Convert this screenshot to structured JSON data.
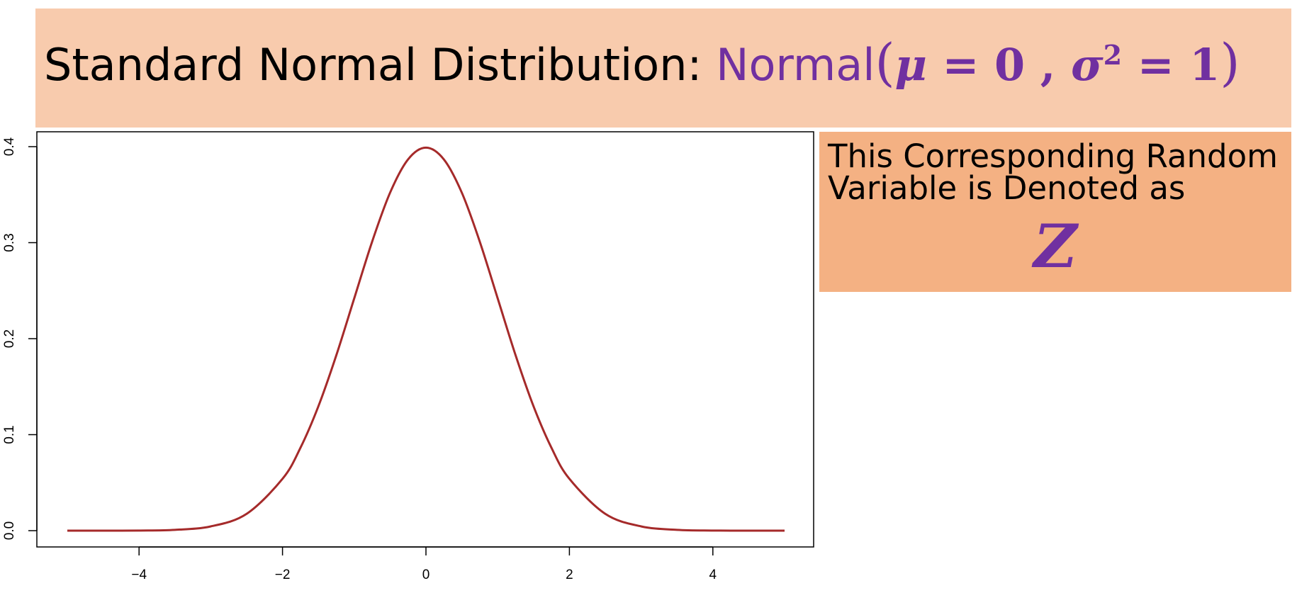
{
  "title": {
    "part1": "Standard Normal",
    "part2": " Distribution: ",
    "part3": "Normal",
    "formula": {
      "mu": "μ",
      "eq1": " = 0 , ",
      "sigma": "σ",
      "exp": "2",
      "eq2": " = 1"
    }
  },
  "info_box": {
    "text": "This Corresponding Random\nVariable  is Denoted as",
    "symbol": "Z"
  },
  "colors": {
    "title_band": "#f8cbad",
    "info_box": "#f4b183",
    "accent_purple": "#7030a0",
    "curve": "#a52a2a"
  },
  "chart_data": {
    "type": "line",
    "title": "",
    "xlabel": "",
    "ylabel": "",
    "xlim": [
      -5,
      5
    ],
    "ylim": [
      0,
      0.4
    ],
    "x_ticks": [
      -4,
      -2,
      0,
      2,
      4
    ],
    "x_tick_labels": [
      "−4",
      "−2",
      "0",
      "2",
      "4"
    ],
    "y_ticks": [
      0.0,
      0.1,
      0.2,
      0.3,
      0.4
    ],
    "y_tick_labels": [
      "0.0",
      "0.1",
      "0.2",
      "0.3",
      "0.4"
    ],
    "grid": false,
    "legend": "none",
    "series": [
      {
        "x": [
          -5,
          -4.5,
          -4,
          -3.5,
          -3,
          -2.5,
          -2,
          -1.75,
          -1.5,
          -1.25,
          -1,
          -0.75,
          -0.5,
          -0.25,
          0,
          0.25,
          0.5,
          0.75,
          1,
          1.25,
          1.5,
          1.75,
          2,
          2.5,
          3,
          3.5,
          4,
          4.5,
          5
        ],
        "y": [
          1.5e-06,
          1.6e-05,
          0.000134,
          0.000873,
          0.004432,
          0.017528,
          0.053991,
          0.086277,
          0.129518,
          0.182649,
          0.241971,
          0.301137,
          0.352065,
          0.386668,
          0.398942,
          0.386668,
          0.352065,
          0.301137,
          0.241971,
          0.182649,
          0.129518,
          0.086277,
          0.053991,
          0.017528,
          0.004432,
          0.000873,
          0.000134,
          1.6e-05,
          1.5e-06
        ],
        "color": "#a52a2a"
      }
    ]
  }
}
